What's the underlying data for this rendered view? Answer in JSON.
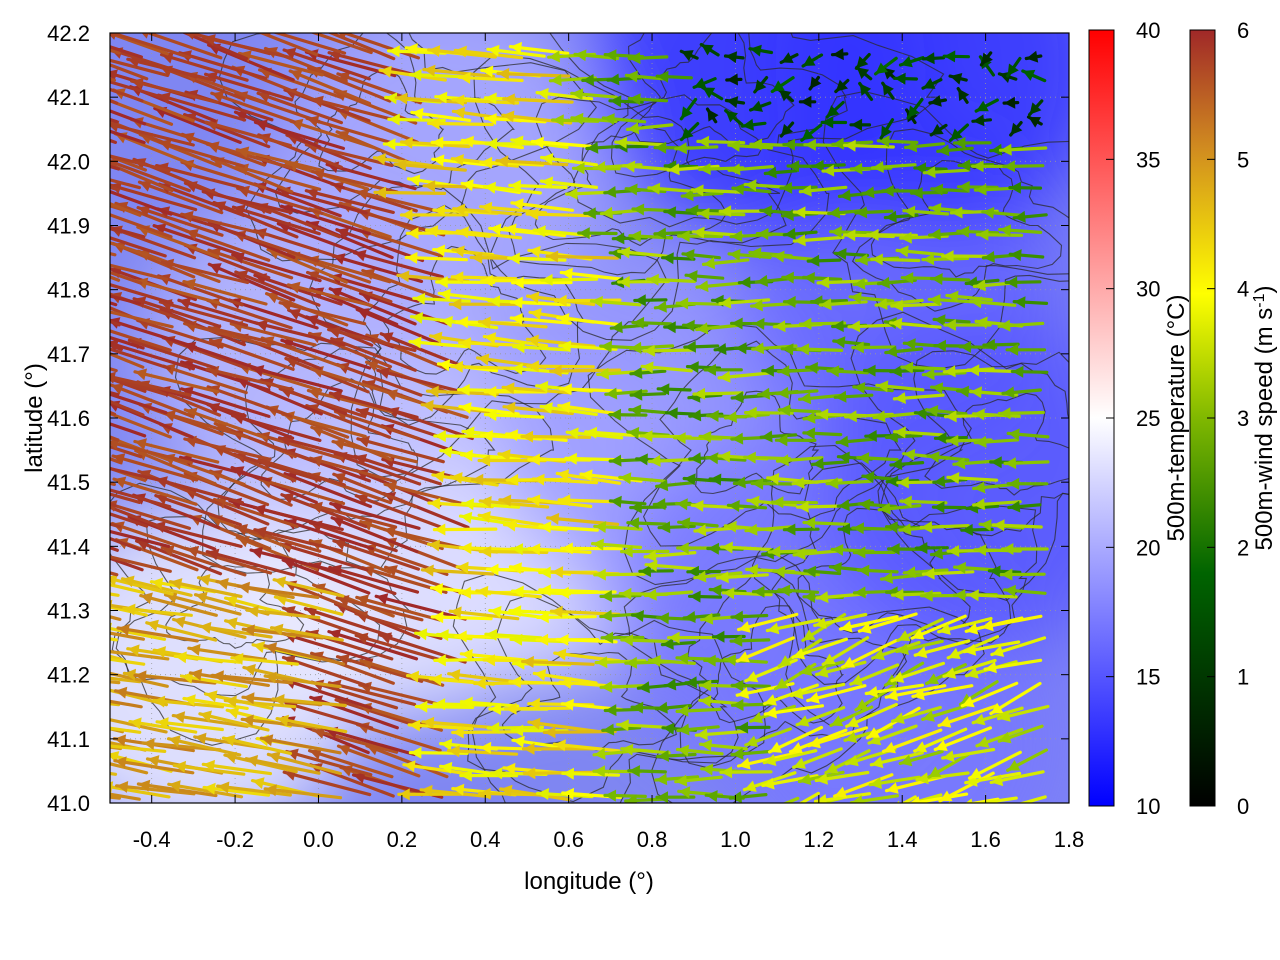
{
  "chart_data": {
    "type": "heatmap",
    "xlabel": "longitude (°)",
    "ylabel": "latitude (°)",
    "xlim": [
      -0.5,
      1.8
    ],
    "ylim": [
      41.0,
      42.2
    ],
    "x_ticks": [
      "-0.4",
      "-0.2",
      "0.0",
      "0.2",
      "0.4",
      "0.6",
      "0.8",
      "1.0",
      "1.2",
      "1.4",
      "1.6",
      "1.8"
    ],
    "y_ticks": [
      "41.0",
      "41.1",
      "41.2",
      "41.3",
      "41.4",
      "41.5",
      "41.6",
      "41.7",
      "41.8",
      "41.9",
      "42.0",
      "42.1",
      "42.2"
    ],
    "grid": true,
    "temperature_field": {
      "label": "500m-temperature (°C)",
      "range": [
        10,
        40
      ],
      "ticks": [
        "10",
        "15",
        "20",
        "25",
        "30",
        "35",
        "40"
      ],
      "colormap": [
        "#0000ff",
        "#ffffff",
        "#ff0000"
      ],
      "regions": [
        {
          "lon": -0.3,
          "lat": 41.2,
          "value": 24
        },
        {
          "lon": 0.2,
          "lat": 41.4,
          "value": 24
        },
        {
          "lon": 0.5,
          "lat": 41.45,
          "value": 23
        },
        {
          "lon": 0.0,
          "lat": 41.7,
          "value": 21
        },
        {
          "lon": 0.3,
          "lat": 42.0,
          "value": 20
        },
        {
          "lon": 0.8,
          "lat": 41.6,
          "value": 19
        },
        {
          "lon": 1.1,
          "lat": 41.3,
          "value": 17
        },
        {
          "lon": 1.4,
          "lat": 41.8,
          "value": 16
        },
        {
          "lon": 1.4,
          "lat": 41.1,
          "value": 17
        },
        {
          "lon": 1.5,
          "lat": 42.15,
          "value": 13
        },
        {
          "lon": 1.05,
          "lat": 42.15,
          "value": 13
        },
        {
          "lon": 1.6,
          "lat": 41.5,
          "value": 15
        }
      ]
    },
    "wind_field": {
      "label": "500m-wind speed (m s-1)",
      "range": [
        0,
        6
      ],
      "ticks": [
        "0",
        "1",
        "2",
        "3",
        "4",
        "5",
        "6"
      ],
      "colormap": [
        "#000000",
        "#006400",
        "#7fbf00",
        "#ffff00",
        "#d4a017",
        "#a02828"
      ],
      "zones": [
        {
          "region": "west (lon < 0.4)",
          "direction_deg": 165,
          "speed": 6
        },
        {
          "region": "southwest corner (lon < 0.1, lat < 41.35)",
          "direction_deg": 170,
          "speed": 4.5
        },
        {
          "region": "central band (lon 0.4-0.9)",
          "direction_deg": 178,
          "speed": 3.8
        },
        {
          "region": "east (lon > 0.9, lat > 41.5)",
          "direction_deg": 180,
          "speed": 2.2
        },
        {
          "region": "northeast (lon > 0.9, lat > 42.05)",
          "direction_deg": 0,
          "speed": 0.8
        },
        {
          "region": "southeast (lon > 1.1, lat < 41.3)",
          "direction_deg": 200,
          "speed": 3.0
        }
      ]
    }
  },
  "colorbars": {
    "temperature": {
      "label_text": "500m-temperature (°C)",
      "ticks": [
        "10",
        "15",
        "20",
        "25",
        "30",
        "35",
        "40"
      ]
    },
    "wind": {
      "label_text": "500m-wind speed (m s",
      "label_sup": "-1",
      "label_end": ")",
      "ticks": [
        "0",
        "1",
        "2",
        "3",
        "4",
        "5",
        "6"
      ]
    }
  }
}
